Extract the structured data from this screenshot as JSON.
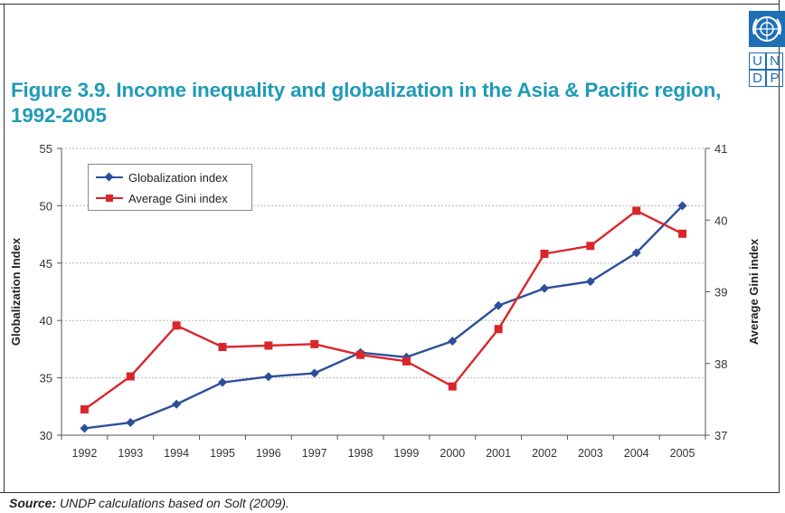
{
  "figure": {
    "title": "Figure 3.9. Income inequality and globalization in the Asia & Pacific region, 1992-2005",
    "source_label": "Source:",
    "source_text": "UNDP calculations based on Solt (2009)."
  },
  "logo": {
    "letters": [
      "U",
      "N",
      "D",
      "P"
    ],
    "brand_color": "#1f6fb4",
    "icon": "un-emblem-icon"
  },
  "colors": {
    "title": "#1f9bb6",
    "globalization": "#2d4f9a",
    "gini": "#d9262b"
  },
  "chart_data": {
    "type": "line",
    "title": "",
    "x": [
      "1992",
      "1993",
      "1994",
      "1995",
      "1996",
      "1997",
      "1998",
      "1999",
      "2000",
      "2001",
      "2002",
      "2003",
      "2004",
      "2005"
    ],
    "ylabel": "Globalization Index",
    "ylim": [
      30,
      55
    ],
    "yticks": [
      30,
      35,
      40,
      45,
      50,
      55
    ],
    "y2label": "Average Gini index",
    "y2lim": [
      37,
      41
    ],
    "y2ticks": [
      37,
      38,
      39,
      40,
      41
    ],
    "grid": true,
    "legend_position": "top-left",
    "series": [
      {
        "name": "Globalization index",
        "axis": "left",
        "marker": "diamond",
        "color": "#2d4f9a",
        "values": [
          30.6,
          31.1,
          32.7,
          34.6,
          35.1,
          35.4,
          37.2,
          36.8,
          38.2,
          41.3,
          42.8,
          43.4,
          45.9,
          50.0
        ]
      },
      {
        "name": "Average Gini index",
        "axis": "right",
        "marker": "square",
        "color": "#d9262b",
        "values": [
          37.36,
          37.82,
          38.53,
          38.23,
          38.25,
          38.27,
          38.12,
          38.03,
          37.68,
          38.48,
          39.53,
          39.64,
          40.13,
          39.81
        ]
      }
    ]
  }
}
